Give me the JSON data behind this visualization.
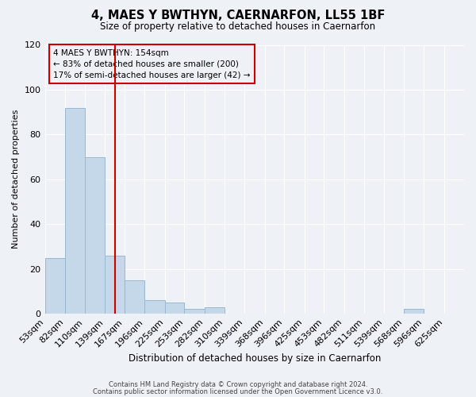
{
  "title1": "4, MAES Y BWTHYN, CAERNARFON, LL55 1BF",
  "title2": "Size of property relative to detached houses in Caernarfon",
  "xlabel": "Distribution of detached houses by size in Caernarfon",
  "ylabel": "Number of detached properties",
  "bins": [
    53,
    82,
    110,
    139,
    167,
    196,
    225,
    253,
    282,
    310,
    339,
    368,
    396,
    425,
    453,
    482,
    511,
    539,
    568,
    596,
    625
  ],
  "counts": [
    25,
    92,
    70,
    26,
    15,
    6,
    5,
    2,
    3,
    0,
    0,
    0,
    0,
    0,
    0,
    0,
    0,
    0,
    2,
    0,
    0
  ],
  "bar_color": "#c5d8ea",
  "bar_edge_color": "#9ab8d0",
  "vline_x": 154,
  "vline_color": "#cc0000",
  "ylim": [
    0,
    120
  ],
  "xlim_left": 53,
  "xlim_right": 654,
  "annotation_line1": "4 MAES Y BWTHYN: 154sqm",
  "annotation_line2": "← 83% of detached houses are smaller (200)",
  "annotation_line3": "17% of semi-detached houses are larger (42) →",
  "annotation_box_edgecolor": "#cc0000",
  "footer1": "Contains HM Land Registry data © Crown copyright and database right 2024.",
  "footer2": "Contains public sector information licensed under the Open Government Licence v3.0.",
  "bg_color": "#eef2f7",
  "grid_color": "#ffffff",
  "tick_labels": [
    "53sqm",
    "82sqm",
    "110sqm",
    "139sqm",
    "167sqm",
    "196sqm",
    "225sqm",
    "253sqm",
    "282sqm",
    "310sqm",
    "339sqm",
    "368sqm",
    "396sqm",
    "425sqm",
    "453sqm",
    "482sqm",
    "511sqm",
    "539sqm",
    "568sqm",
    "596sqm",
    "625sqm"
  ]
}
